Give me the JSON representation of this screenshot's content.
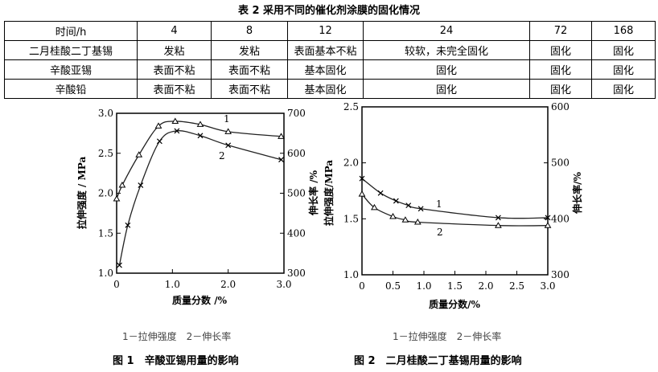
{
  "table": {
    "title": "表 2 采用不同的催化剂涂膜的固化情况",
    "header": [
      "时间/h",
      "4",
      "8",
      "12",
      "24",
      "72",
      "168"
    ],
    "rows": [
      [
        "二月桂酸二丁基锡",
        "发粘",
        "发粘",
        "表面基本不粘",
        "较软，未完全固化",
        "固化",
        "固化"
      ],
      [
        "辛酸亚锡",
        "表面不粘",
        "表面不粘",
        "基本固化",
        "固化",
        "固化",
        "固化"
      ],
      [
        "辛酸铅",
        "表面不粘",
        "表面不粘",
        "基本固化",
        "固化",
        "固化",
        "固化"
      ]
    ]
  },
  "chart_data": [
    {
      "type": "line",
      "title": "图 1　辛酸亚锡用量的影响",
      "legend": "1－拉伸强度　2－伸长率",
      "xlabel": "质量分数 /%",
      "ylabel": "拉伸强度 / MPa",
      "y2label": "伸长率 /%",
      "xlim": [
        0,
        3.0
      ],
      "ylim": [
        1.0,
        3.0
      ],
      "y2lim": [
        300,
        700
      ],
      "xticks": [
        "0",
        "1.0",
        "2.0",
        "3.0"
      ],
      "yticks": [
        "1.0",
        "1.5",
        "2.0",
        "2.5",
        "3.0"
      ],
      "y2ticks": [
        "300",
        "400",
        "500",
        "600",
        "700"
      ],
      "series": [
        {
          "name": "1",
          "marker": "triangle",
          "axis": "left",
          "x": [
            0,
            0.1,
            0.4,
            0.75,
            1.05,
            1.5,
            2.0,
            2.95
          ],
          "y": [
            1.93,
            2.1,
            2.48,
            2.84,
            2.9,
            2.86,
            2.77,
            2.71
          ]
        },
        {
          "name": "2",
          "marker": "cross",
          "axis": "right",
          "x": [
            0.05,
            0.2,
            0.43,
            0.77,
            1.08,
            1.5,
            2.0,
            2.95
          ],
          "y": [
            320,
            420,
            520,
            630,
            656,
            644,
            620,
            584
          ]
        }
      ]
    },
    {
      "type": "line",
      "title": "图 2　二月桂酸二丁基锡用量的影响",
      "legend": "1－拉伸强度　2－伸长率",
      "xlabel": "质量分数/%",
      "ylabel": "拉伸强度/MPa",
      "y2label": "伸长率/%",
      "xlim": [
        0,
        3.0
      ],
      "ylim": [
        1.0,
        2.5
      ],
      "y2lim": [
        300,
        600
      ],
      "xticks": [
        "0",
        "0.5",
        "1.0",
        "1.5",
        "2.0",
        "2.5",
        "3.0"
      ],
      "yticks": [
        "1.0",
        "1.5",
        "2.0",
        "2.5"
      ],
      "y2ticks": [
        "300",
        "400",
        "500",
        "600"
      ],
      "series": [
        {
          "name": "1",
          "marker": "triangle",
          "axis": "left",
          "x": [
            0,
            0.2,
            0.5,
            0.7,
            0.9,
            2.2,
            3.0
          ],
          "y": [
            1.72,
            1.6,
            1.52,
            1.49,
            1.47,
            1.44,
            1.44
          ]
        },
        {
          "name": "2",
          "marker": "cross",
          "axis": "right",
          "x": [
            0,
            0.3,
            0.55,
            0.75,
            0.95,
            2.2,
            3.0
          ],
          "y": [
            472,
            446,
            432,
            424,
            418,
            402,
            402
          ]
        }
      ]
    }
  ]
}
